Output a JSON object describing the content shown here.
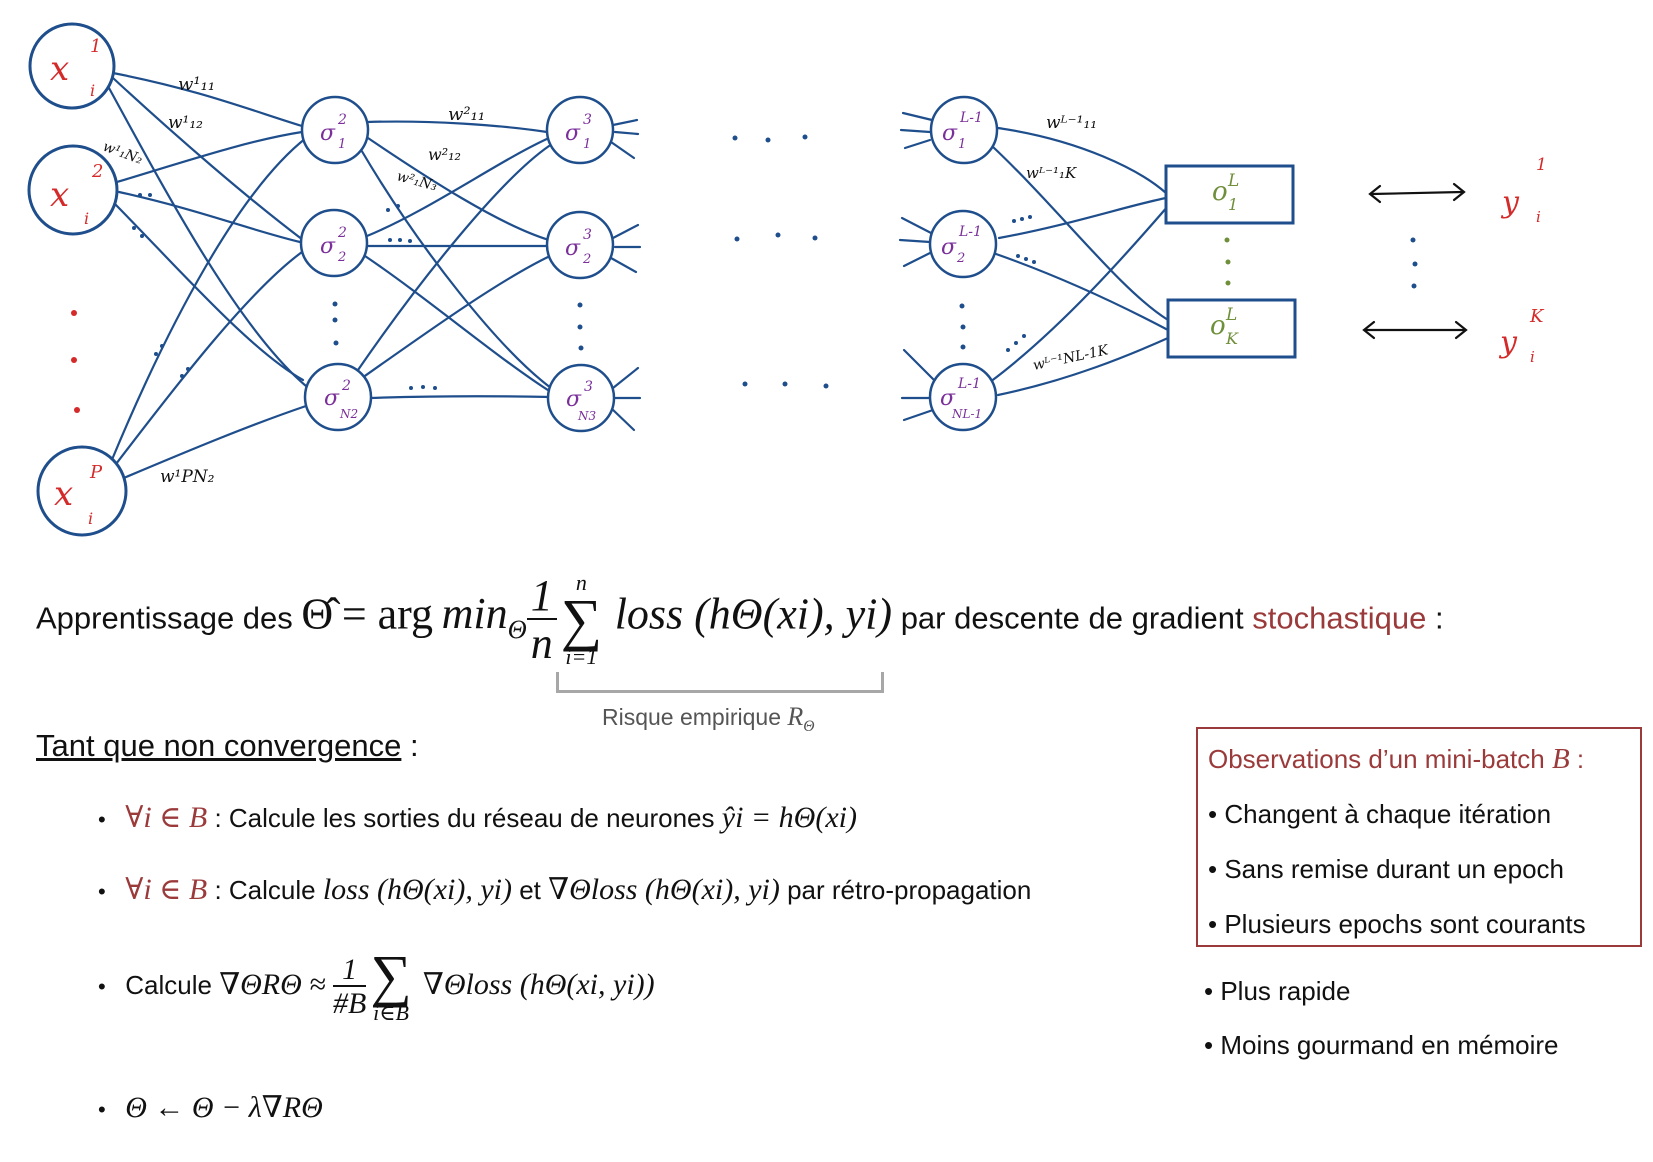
{
  "network": {
    "input_labels": [
      "x",
      "x",
      "x"
    ],
    "input_sup": [
      "1",
      "2",
      "P"
    ],
    "input_sub": "i",
    "layer1_sup": [
      "2",
      "2",
      "2"
    ],
    "layer1_sub": [
      "1",
      "2",
      "N2"
    ],
    "layer2_sup": [
      "3",
      "3",
      "3"
    ],
    "layer2_sub": [
      "1",
      "2",
      "N3"
    ],
    "layerL1_sup": [
      "L-1",
      "L-1",
      "L-1"
    ],
    "layerL1_sub": [
      "1",
      "2",
      "NL-1"
    ],
    "neuron_symbol": "σ",
    "output_labels": [
      "o",
      "o"
    ],
    "output_sup": [
      "L",
      "L"
    ],
    "output_sub": [
      "1",
      "K"
    ],
    "target_labels": [
      "y",
      "y"
    ],
    "target_sup": [
      "1",
      "K"
    ],
    "target_sub": "i",
    "weight_labels": {
      "w11_1": "w¹₁₁",
      "w12_1": "w¹₁₂",
      "w1N2_1": "w¹₁N₂",
      "wPN2_1": "w¹PN₂",
      "w11_2": "w²₁₁",
      "w12_2": "w²₁₂",
      "w1N3_2": "w²₁N₃",
      "w11_L1": "wᴸ⁻¹₁₁",
      "w1K_L1": "wᴸ⁻¹₁K",
      "wNK_L1": "wᴸ⁻¹NL-1K"
    },
    "colors": {
      "structure": "#1f4e8c",
      "input_text": "#d42a2a",
      "hidden_text": "#7a2f9a",
      "output_text": "#6f8f3a",
      "target_text": "#d42a2a"
    }
  },
  "objective": {
    "prefix": "Apprentissage des",
    "theta_hat": "Θ̂",
    "equals": "= arg",
    "min": "min",
    "min_sub": "Θ",
    "frac_num": "1",
    "frac_den": "n",
    "sum_sup": "n",
    "sum_sub": "i=1",
    "loss_expr": "loss (hΘ(xi), yi)",
    "middle": "par descente de gradient",
    "emph": "stochastique",
    "suffix": ":"
  },
  "risk": {
    "label": "Risque empirique",
    "symbol": "R",
    "sub": "Θ"
  },
  "loop": {
    "title": "Tant que non convergence",
    "suffix": ":"
  },
  "steps": {
    "s1_quant": "∀i ∈ B",
    "s1_text": ": Calcule les sorties du réseau de neurones",
    "s1_math": "ŷi = hΘ(xi)",
    "s2_quant": "∀i ∈ B",
    "s2_text": ": Calcule",
    "s2_math1": "loss (hΘ(xi), yi)",
    "s2_and": "et",
    "s2_math2": "∇Θloss (hΘ(xi), yi)",
    "s2_tail": "par rétro-propagation",
    "s3_text": "Calcule",
    "s3_lhs": "∇ΘRΘ ≈",
    "s3_frac_num": "1",
    "s3_frac_den": "#B",
    "s3_sum_sub": "i∈B",
    "s3_rhs": "∇Θloss (hΘ(xi, yi))",
    "s4_math": "Θ ← Θ − λ∇RΘ"
  },
  "minibatch": {
    "title": "Observations d’un mini-batch",
    "title_symbol": "B",
    "title_suffix": ":",
    "items": [
      "Changent à chaque itération",
      "Sans remise durant un epoch",
      "Plusieurs epochs sont courants"
    ]
  },
  "advantages": [
    "Plus rapide",
    "Moins gourmand en mémoire"
  ],
  "bullet_char": "•"
}
